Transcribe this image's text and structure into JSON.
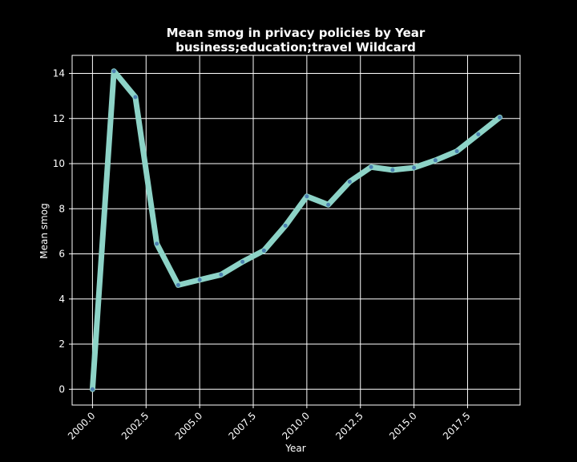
{
  "chart_data": {
    "type": "line",
    "title": "Mean smog in privacy policies by Year",
    "subtitle": "business;education;travel Wildcard",
    "xlabel": "Year",
    "ylabel": "Mean smog",
    "xlim": [
      1999.05,
      2019.95
    ],
    "ylim": [
      -0.7,
      14.8
    ],
    "xticks": [
      "2000.0",
      "2002.5",
      "2005.0",
      "2007.5",
      "2010.0",
      "2012.5",
      "2015.0",
      "2017.5"
    ],
    "xtick_values": [
      2000,
      2002.5,
      2005,
      2007.5,
      2010,
      2012.5,
      2015,
      2017.5
    ],
    "yticks": [
      "0",
      "2",
      "4",
      "6",
      "8",
      "10",
      "12",
      "14"
    ],
    "ytick_values": [
      0,
      2,
      4,
      6,
      8,
      10,
      12,
      14
    ],
    "grid": true,
    "series": [
      {
        "color": "#8dd3c7",
        "marker_color": "#4a7fb0",
        "x": [
          2000,
          2001,
          2002,
          2003,
          2004,
          2005,
          2006,
          2007,
          2008,
          2009,
          2010,
          2011,
          2012,
          2013,
          2014,
          2015,
          2016,
          2017,
          2018,
          2019
        ],
        "y": [
          0.0,
          14.1,
          12.95,
          6.45,
          4.62,
          4.85,
          5.08,
          5.65,
          6.15,
          7.25,
          8.55,
          8.18,
          9.2,
          9.85,
          9.72,
          9.82,
          10.15,
          10.55,
          11.3,
          12.05
        ]
      }
    ]
  }
}
